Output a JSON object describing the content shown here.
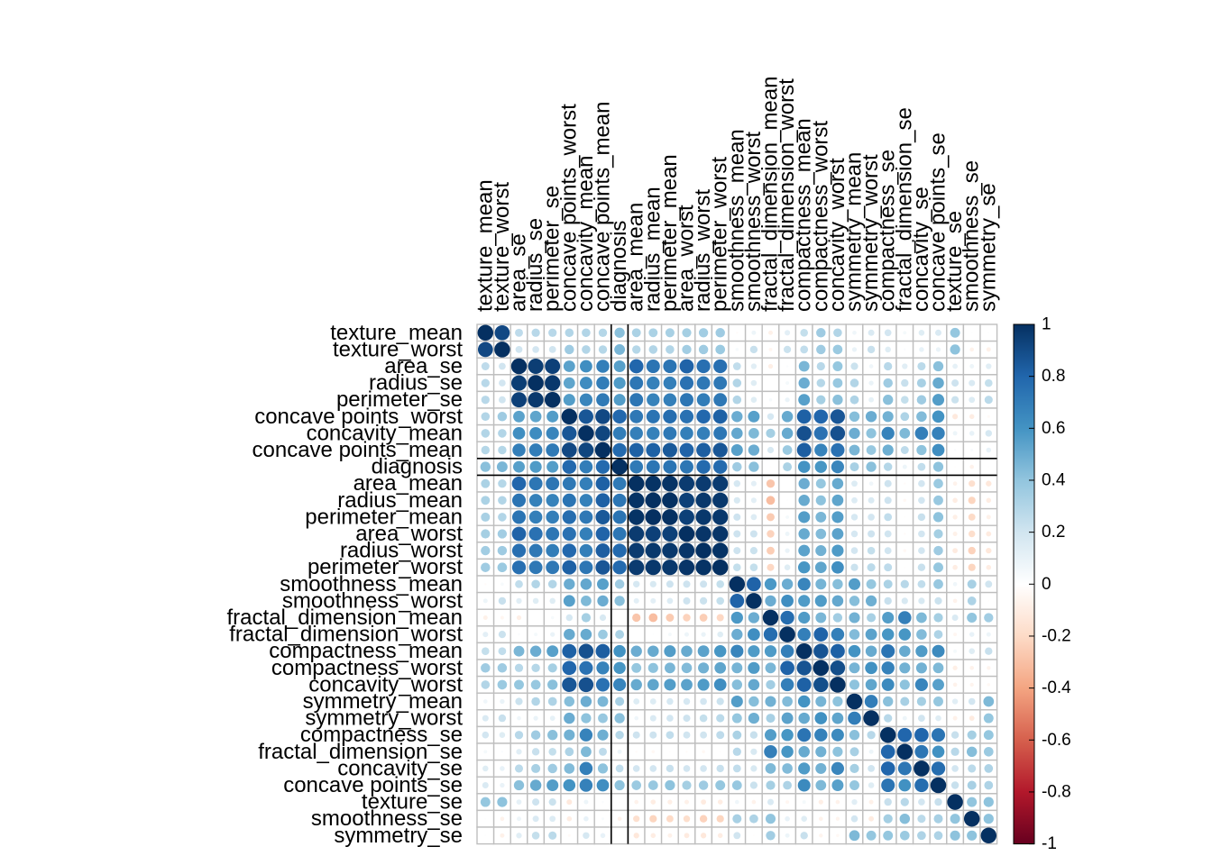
{
  "chart_data": {
    "type": "heatmap",
    "style": "correlation matrix, circles colored and sized by correlation, hierarchical clustering order",
    "title": "",
    "variables": [
      "texture_mean",
      "texture_worst",
      "area_se",
      "radius_se",
      "perimeter_se",
      "concave points_worst",
      "concavity_mean",
      "concave points_mean",
      "diagnosis",
      "area_mean",
      "radius_mean",
      "perimeter_mean",
      "area_worst",
      "radius_worst",
      "perimeter_worst",
      "smoothness_mean",
      "smoothness_worst",
      "fractal_dimension_mean",
      "fractal_dimension_worst",
      "compactness_mean",
      "compactness_worst",
      "concavity_worst",
      "symmetry_mean",
      "symmetry_worst",
      "compactness_se",
      "fractal_dimension_se",
      "concavity_se",
      "concave points_se",
      "texture_se",
      "smoothness_se",
      "symmetry_se"
    ],
    "highlight_variable": "diagnosis",
    "colorbar": {
      "range": [
        -1,
        1
      ],
      "ticks": [
        1,
        0.8,
        0.6,
        0.4,
        0.2,
        0,
        -0.2,
        -0.4,
        -0.6,
        -0.8,
        -1
      ],
      "low_color": "#67001f",
      "mid_color": "#ffffff",
      "high_color": "#053061"
    },
    "colors": {
      "grid": "#bebebe",
      "highlight_line": "#000000"
    },
    "matrix": [
      [
        1,
        0.91,
        0.26,
        0.28,
        0.28,
        0.3,
        0.3,
        0.29,
        0.42,
        0.32,
        0.32,
        0.33,
        0.34,
        0.35,
        0.36,
        -0.02,
        0.08,
        -0.08,
        0.12,
        0.24,
        0.36,
        0.3,
        0.07,
        0.16,
        0.19,
        0.05,
        0.14,
        0.16,
        0.39,
        0.01,
        0.01
      ],
      [
        0.91,
        1,
        0.2,
        0.19,
        0.2,
        0.36,
        0.3,
        0.29,
        0.46,
        0.29,
        0.3,
        0.3,
        0.35,
        0.36,
        0.37,
        0.04,
        0.23,
        -0.05,
        0.22,
        0.25,
        0.36,
        0.37,
        0.09,
        0.23,
        0.14,
        0.02,
        0.1,
        0.09,
        0.41,
        -0.07,
        -0.08
      ],
      [
        0.26,
        0.2,
        1,
        0.95,
        0.94,
        0.54,
        0.62,
        0.69,
        0.55,
        0.8,
        0.74,
        0.74,
        0.81,
        0.76,
        0.76,
        0.25,
        0.13,
        -0.09,
        0.02,
        0.46,
        0.28,
        0.39,
        0.22,
        0.07,
        0.28,
        0.13,
        0.27,
        0.42,
        0.11,
        0.08,
        0.13
      ],
      [
        0.28,
        0.19,
        0.95,
        1,
        0.97,
        0.53,
        0.63,
        0.7,
        0.57,
        0.73,
        0.68,
        0.69,
        0.75,
        0.72,
        0.72,
        0.3,
        0.14,
        0,
        0.05,
        0.5,
        0.29,
        0.38,
        0.3,
        0.09,
        0.36,
        0.23,
        0.33,
        0.51,
        0.21,
        0.16,
        0.24
      ],
      [
        0.28,
        0.2,
        0.94,
        0.97,
        1,
        0.56,
        0.66,
        0.71,
        0.56,
        0.73,
        0.67,
        0.69,
        0.73,
        0.7,
        0.72,
        0.3,
        0.14,
        0.04,
        0.09,
        0.55,
        0.34,
        0.42,
        0.31,
        0.11,
        0.42,
        0.24,
        0.36,
        0.56,
        0.22,
        0.15,
        0.27
      ],
      [
        0.3,
        0.36,
        0.54,
        0.53,
        0.56,
        1,
        0.86,
        0.91,
        0.79,
        0.72,
        0.74,
        0.77,
        0.75,
        0.79,
        0.82,
        0.5,
        0.55,
        0.18,
        0.51,
        0.82,
        0.8,
        0.86,
        0.43,
        0.5,
        0.48,
        0.31,
        0.44,
        0.6,
        -0.12,
        -0.1,
        -0.03
      ],
      [
        0.3,
        0.3,
        0.62,
        0.63,
        0.66,
        0.86,
        1,
        0.92,
        0.7,
        0.69,
        0.68,
        0.72,
        0.69,
        0.69,
        0.73,
        0.52,
        0.45,
        0.34,
        0.51,
        0.88,
        0.75,
        0.88,
        0.5,
        0.41,
        0.67,
        0.45,
        0.69,
        0.68,
        0.08,
        0.1,
        0.18
      ],
      [
        0.29,
        0.29,
        0.69,
        0.7,
        0.71,
        0.91,
        0.92,
        1,
        0.78,
        0.82,
        0.82,
        0.85,
        0.81,
        0.83,
        0.86,
        0.55,
        0.5,
        0.17,
        0.37,
        0.83,
        0.67,
        0.75,
        0.46,
        0.38,
        0.49,
        0.26,
        0.41,
        0.62,
        0.02,
        0.03,
        0.1
      ],
      [
        0.42,
        0.46,
        0.55,
        0.57,
        0.56,
        0.79,
        0.7,
        0.78,
        1,
        0.71,
        0.73,
        0.74,
        0.73,
        0.78,
        0.78,
        0.36,
        0.42,
        -0.01,
        0.32,
        0.6,
        0.59,
        0.66,
        0.33,
        0.42,
        0.29,
        0.08,
        0.25,
        0.41,
        -0.01,
        -0.07,
        -0.01
      ],
      [
        0.32,
        0.29,
        0.8,
        0.73,
        0.73,
        0.72,
        0.69,
        0.82,
        0.71,
        1,
        0.99,
        0.99,
        0.96,
        0.96,
        0.96,
        0.18,
        0.12,
        -0.28,
        0,
        0.5,
        0.39,
        0.51,
        0.15,
        0.07,
        0.21,
        -0.02,
        0.19,
        0.37,
        -0.07,
        -0.17,
        -0.13
      ],
      [
        0.32,
        0.3,
        0.74,
        0.68,
        0.67,
        0.74,
        0.68,
        0.82,
        0.73,
        0.99,
        1,
        1,
        0.94,
        0.97,
        0.97,
        0.17,
        0.12,
        -0.31,
        0.01,
        0.51,
        0.41,
        0.53,
        0.15,
        0.16,
        0.21,
        -0.04,
        0.19,
        0.38,
        -0.1,
        -0.22,
        -0.1
      ],
      [
        0.33,
        0.3,
        0.74,
        0.69,
        0.69,
        0.77,
        0.72,
        0.85,
        0.74,
        0.99,
        1,
        1,
        0.94,
        0.97,
        0.97,
        0.21,
        0.15,
        -0.26,
        0.05,
        0.56,
        0.46,
        0.56,
        0.18,
        0.19,
        0.25,
        -0.01,
        0.23,
        0.41,
        -0.09,
        -0.2,
        -0.08
      ],
      [
        0.34,
        0.35,
        0.81,
        0.75,
        0.73,
        0.75,
        0.69,
        0.81,
        0.73,
        0.96,
        0.94,
        0.94,
        1,
        0.98,
        0.98,
        0.21,
        0.21,
        -0.23,
        0.08,
        0.51,
        0.44,
        0.54,
        0.18,
        0.21,
        0.2,
        -0.02,
        0.19,
        0.34,
        -0.08,
        -0.18,
        -0.11
      ],
      [
        0.35,
        0.36,
        0.76,
        0.72,
        0.7,
        0.79,
        0.69,
        0.83,
        0.78,
        0.96,
        0.97,
        0.97,
        0.98,
        1,
        0.99,
        0.21,
        0.22,
        -0.25,
        0.09,
        0.54,
        0.48,
        0.57,
        0.19,
        0.24,
        0.2,
        -0.04,
        0.19,
        0.36,
        -0.11,
        -0.23,
        -0.13
      ],
      [
        0.36,
        0.37,
        0.76,
        0.72,
        0.72,
        0.82,
        0.73,
        0.86,
        0.78,
        0.96,
        0.97,
        0.97,
        0.98,
        0.99,
        1,
        0.24,
        0.24,
        -0.21,
        0.14,
        0.59,
        0.53,
        0.62,
        0.22,
        0.27,
        0.26,
        -0.01,
        0.23,
        0.39,
        -0.1,
        -0.22,
        -0.1
      ],
      [
        -0.02,
        0.04,
        0.25,
        0.3,
        0.3,
        0.5,
        0.52,
        0.55,
        0.36,
        0.18,
        0.17,
        0.21,
        0.21,
        0.21,
        0.24,
        1,
        0.81,
        0.58,
        0.5,
        0.66,
        0.47,
        0.43,
        0.56,
        0.39,
        0.32,
        0.28,
        0.25,
        0.38,
        0.07,
        0.33,
        0.2
      ],
      [
        0.08,
        0.23,
        0.13,
        0.14,
        0.14,
        0.55,
        0.45,
        0.5,
        0.42,
        0.12,
        0.12,
        0.15,
        0.21,
        0.22,
        0.24,
        0.81,
        1,
        0.5,
        0.62,
        0.57,
        0.57,
        0.52,
        0.43,
        0.49,
        0.23,
        0.17,
        0.17,
        0.22,
        -0.07,
        0.31,
        -0.01
      ],
      [
        -0.08,
        -0.05,
        -0.09,
        0,
        0.04,
        0.18,
        0.34,
        0.17,
        -0.01,
        -0.28,
        -0.31,
        -0.26,
        -0.23,
        -0.25,
        -0.21,
        0.58,
        0.5,
        1,
        0.77,
        0.57,
        0.46,
        0.35,
        0.48,
        0.33,
        0.56,
        0.69,
        0.45,
        0.34,
        0.16,
        0.4,
        0.35
      ],
      [
        0.12,
        0.22,
        0.02,
        0.05,
        0.09,
        0.51,
        0.51,
        0.37,
        0.32,
        0,
        0.01,
        0.05,
        0.08,
        0.09,
        0.14,
        0.5,
        0.62,
        0.77,
        1,
        0.69,
        0.81,
        0.69,
        0.44,
        0.54,
        0.59,
        0.59,
        0.44,
        0.31,
        -0.05,
        0.1,
        0.08
      ],
      [
        0.24,
        0.25,
        0.46,
        0.5,
        0.55,
        0.82,
        0.88,
        0.83,
        0.6,
        0.5,
        0.51,
        0.56,
        0.51,
        0.54,
        0.59,
        0.66,
        0.57,
        0.57,
        0.69,
        1,
        0.87,
        0.82,
        0.6,
        0.51,
        0.74,
        0.51,
        0.57,
        0.64,
        0.05,
        0.14,
        0.23
      ],
      [
        0.36,
        0.36,
        0.28,
        0.29,
        0.34,
        0.8,
        0.75,
        0.67,
        0.59,
        0.39,
        0.41,
        0.46,
        0.44,
        0.48,
        0.53,
        0.47,
        0.57,
        0.46,
        0.81,
        0.87,
        1,
        0.89,
        0.47,
        0.61,
        0.68,
        0.48,
        0.48,
        0.45,
        -0.09,
        -0.07,
        -0.06
      ],
      [
        0.3,
        0.37,
        0.39,
        0.38,
        0.42,
        0.86,
        0.88,
        0.75,
        0.66,
        0.51,
        0.53,
        0.56,
        0.54,
        0.57,
        0.62,
        0.43,
        0.52,
        0.35,
        0.69,
        0.82,
        0.89,
        1,
        0.41,
        0.53,
        0.64,
        0.41,
        0.66,
        0.55,
        -0.07,
        -0.06,
        -0.04
      ],
      [
        0.07,
        0.09,
        0.22,
        0.3,
        0.31,
        0.43,
        0.5,
        0.46,
        0.33,
        0.15,
        0.15,
        0.18,
        0.18,
        0.19,
        0.22,
        0.56,
        0.43,
        0.48,
        0.44,
        0.6,
        0.47,
        0.41,
        1,
        0.7,
        0.42,
        0.33,
        0.34,
        0.39,
        0.13,
        0.19,
        0.45
      ],
      [
        0.16,
        0.23,
        0.07,
        0.09,
        0.11,
        0.5,
        0.41,
        0.38,
        0.42,
        0.07,
        0.16,
        0.19,
        0.21,
        0.24,
        0.27,
        0.39,
        0.49,
        0.33,
        0.54,
        0.51,
        0.61,
        0.53,
        0.7,
        1,
        0.28,
        0.08,
        0.2,
        0.14,
        -0.08,
        -0.11,
        0.39
      ],
      [
        0.19,
        0.14,
        0.28,
        0.36,
        0.42,
        0.48,
        0.67,
        0.49,
        0.29,
        0.21,
        0.21,
        0.25,
        0.2,
        0.2,
        0.26,
        0.32,
        0.23,
        0.56,
        0.59,
        0.74,
        0.68,
        0.64,
        0.42,
        0.28,
        1,
        0.8,
        0.8,
        0.74,
        0.23,
        0.34,
        0.39
      ],
      [
        0.05,
        0.02,
        0.13,
        0.23,
        0.24,
        0.31,
        0.45,
        0.26,
        0.08,
        -0.02,
        -0.04,
        -0.01,
        -0.02,
        -0.04,
        -0.01,
        0.28,
        0.17,
        0.69,
        0.59,
        0.51,
        0.48,
        0.41,
        0.33,
        0.08,
        0.8,
        1,
        0.73,
        0.61,
        0.28,
        0.43,
        0.37
      ],
      [
        0.14,
        0.1,
        0.27,
        0.33,
        0.36,
        0.44,
        0.69,
        0.41,
        0.25,
        0.19,
        0.19,
        0.23,
        0.19,
        0.19,
        0.23,
        0.25,
        0.17,
        0.45,
        0.44,
        0.57,
        0.48,
        0.66,
        0.34,
        0.2,
        0.8,
        0.73,
        1,
        0.77,
        0.19,
        0.27,
        0.31
      ],
      [
        0.16,
        0.09,
        0.42,
        0.51,
        0.56,
        0.6,
        0.68,
        0.62,
        0.41,
        0.37,
        0.38,
        0.41,
        0.34,
        0.36,
        0.39,
        0.38,
        0.22,
        0.34,
        0.31,
        0.64,
        0.45,
        0.55,
        0.39,
        0.14,
        0.74,
        0.61,
        0.77,
        1,
        0.23,
        0.33,
        0.31
      ],
      [
        0.39,
        0.41,
        0.11,
        0.21,
        0.22,
        -0.12,
        0.08,
        0.02,
        -0.01,
        -0.07,
        -0.1,
        -0.09,
        -0.08,
        -0.11,
        -0.1,
        0.07,
        -0.07,
        0.16,
        -0.05,
        0.05,
        -0.09,
        -0.07,
        0.13,
        -0.08,
        0.23,
        0.28,
        0.19,
        0.23,
        1,
        0.4,
        0.41
      ],
      [
        0.01,
        -0.07,
        0.08,
        0.16,
        0.15,
        -0.1,
        0.1,
        0.03,
        -0.07,
        -0.17,
        -0.22,
        -0.2,
        -0.18,
        -0.23,
        -0.22,
        0.33,
        0.31,
        0.4,
        0.1,
        0.14,
        -0.07,
        -0.06,
        0.19,
        -0.11,
        0.34,
        0.43,
        0.27,
        0.33,
        0.4,
        1,
        0.41
      ],
      [
        0.01,
        -0.08,
        0.13,
        0.24,
        0.27,
        -0.03,
        0.18,
        0.1,
        -0.01,
        -0.13,
        -0.1,
        -0.08,
        -0.11,
        -0.13,
        -0.1,
        0.2,
        -0.01,
        0.35,
        0.08,
        0.23,
        -0.06,
        -0.04,
        0.45,
        0.39,
        0.39,
        0.37,
        0.31,
        0.31,
        0.41,
        0.41,
        1
      ]
    ]
  }
}
